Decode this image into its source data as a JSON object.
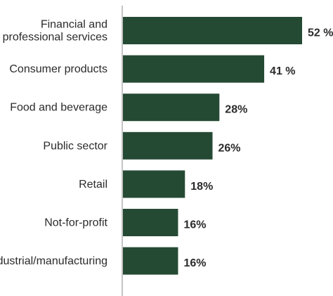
{
  "chart_data": {
    "type": "bar",
    "orientation": "horizontal",
    "categories": [
      [
        "Financial and",
        "professional services"
      ],
      [
        "Consumer products"
      ],
      [
        "Food and beverage"
      ],
      [
        "Public sector"
      ],
      [
        "Retail"
      ],
      [
        "Not-for-profit"
      ],
      [
        "Industrial/manufacturing"
      ]
    ],
    "values": [
      52,
      41,
      28,
      26,
      18,
      16,
      16
    ],
    "value_labels": [
      "52 %",
      "41 %",
      "28%",
      "26%",
      "18%",
      "16%",
      "16%"
    ],
    "bar_color": "#254a34",
    "grid": false
  }
}
